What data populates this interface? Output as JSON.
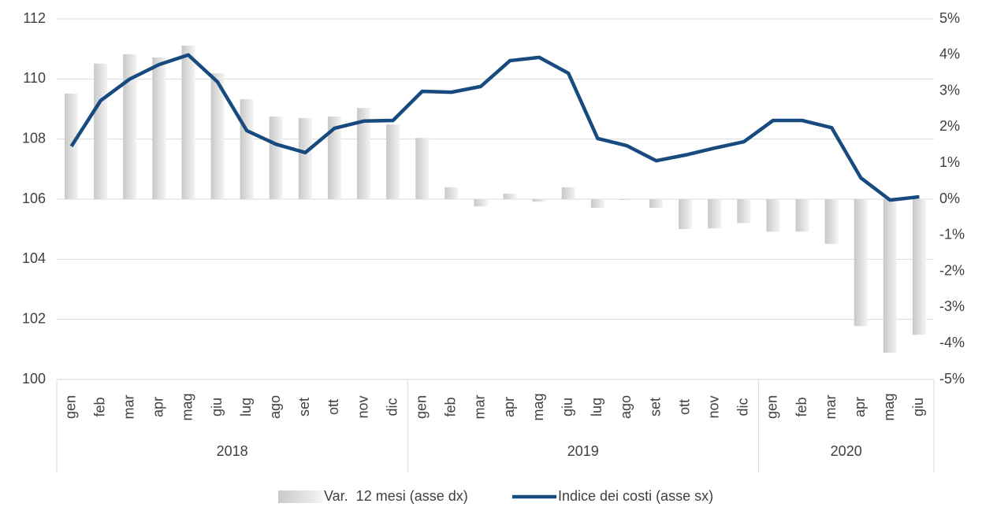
{
  "chart_data": {
    "type": "bar_line",
    "categories": [
      "gen",
      "feb",
      "mar",
      "apr",
      "mag",
      "giu",
      "lug",
      "ago",
      "set",
      "ott",
      "nov",
      "dic",
      "gen",
      "feb",
      "mar",
      "apr",
      "mag",
      "giu",
      "lug",
      "ago",
      "set",
      "ott",
      "nov",
      "dic",
      "gen",
      "feb",
      "mar",
      "apr",
      "mag",
      "giu"
    ],
    "years": [
      "2018",
      "2019",
      "2020"
    ],
    "series": [
      {
        "name": "Var.  12 mesi (asse dx)",
        "type": "bar",
        "axis": "y2",
        "color": "#d9d9d9",
        "values": [
          2.93,
          3.76,
          4.02,
          3.93,
          4.26,
          3.49,
          2.77,
          2.29,
          2.25,
          2.29,
          2.53,
          2.07,
          1.7,
          0.33,
          -0.2,
          0.15,
          -0.07,
          0.33,
          -0.24,
          -0.02,
          -0.24,
          -0.83,
          -0.81,
          -0.66,
          -0.9,
          -0.9,
          -1.24,
          -3.52,
          -4.26,
          -3.76
        ]
      },
      {
        "name": "Indice dei costi (asse sx)",
        "type": "line",
        "axis": "y",
        "color": "#174a7e",
        "values": [
          107.76,
          109.28,
          110.0,
          110.48,
          110.8,
          109.9,
          108.28,
          107.83,
          107.55,
          108.36,
          108.6,
          108.62,
          109.59,
          109.56,
          109.75,
          110.61,
          110.72,
          110.19,
          108.02,
          107.78,
          107.28,
          107.47,
          107.7,
          107.91,
          108.62,
          108.62,
          108.38,
          106.71,
          105.97,
          106.08
        ]
      }
    ],
    "ylim": [
      100,
      112
    ],
    "yticks": [
      100,
      102,
      104,
      106,
      108,
      110,
      112
    ],
    "y2lim": [
      -5,
      5
    ],
    "y2ticks": [
      {
        "value": -5,
        "label": "-5%"
      },
      {
        "value": -4,
        "label": "-4%"
      },
      {
        "value": -3,
        "label": "-3%"
      },
      {
        "value": -2,
        "label": "-2%"
      },
      {
        "value": -1,
        "label": "-1%"
      },
      {
        "value": 0,
        "label": "0%"
      },
      {
        "value": 1,
        "label": "1%"
      },
      {
        "value": 2,
        "label": "2%"
      },
      {
        "value": 3,
        "label": "3%"
      },
      {
        "value": 4,
        "label": "4%"
      },
      {
        "value": 5,
        "label": "5%"
      }
    ],
    "grid": true,
    "legend": "bottom"
  }
}
